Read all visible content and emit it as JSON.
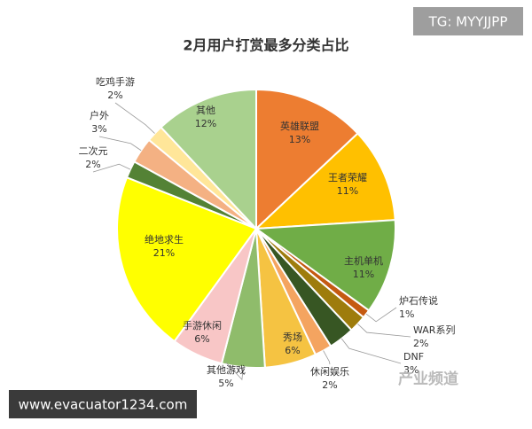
{
  "chart_data": {
    "type": "pie",
    "title": "2月用户打赏最多分类占比",
    "categories": [
      "英雄联盟",
      "王者荣耀",
      "主机单机",
      "炉石传说",
      "WAR系列",
      "DNF",
      "休闲娱乐",
      "秀场",
      "其他游戏",
      "手游休闲",
      "绝地求生",
      "二次元",
      "户外",
      "吃鸡手游",
      "其他"
    ],
    "values": [
      13,
      11,
      11,
      1,
      2,
      3,
      2,
      6,
      5,
      6,
      21,
      2,
      3,
      2,
      12
    ],
    "value_labels": [
      "13%",
      "11%",
      "11%",
      "1%",
      "2%",
      "3%",
      "2%",
      "6%",
      "5%",
      "6%",
      "21%",
      "2%",
      "3%",
      "2%",
      "12%"
    ],
    "colors": [
      "#ed7d31",
      "#ffc000",
      "#70ad47",
      "#c55a11",
      "#9e7c0c",
      "#375623",
      "#f4a460",
      "#f5c342",
      "#8fbc6b",
      "#f8c6c6",
      "#ffff00",
      "#548235",
      "#f4b183",
      "#ffe699",
      "#a9d18e"
    ]
  },
  "watermarks": {
    "top": "TG: MYYJJPP",
    "bottom": "www.evacuator1234.com",
    "logo": "产业频道"
  }
}
